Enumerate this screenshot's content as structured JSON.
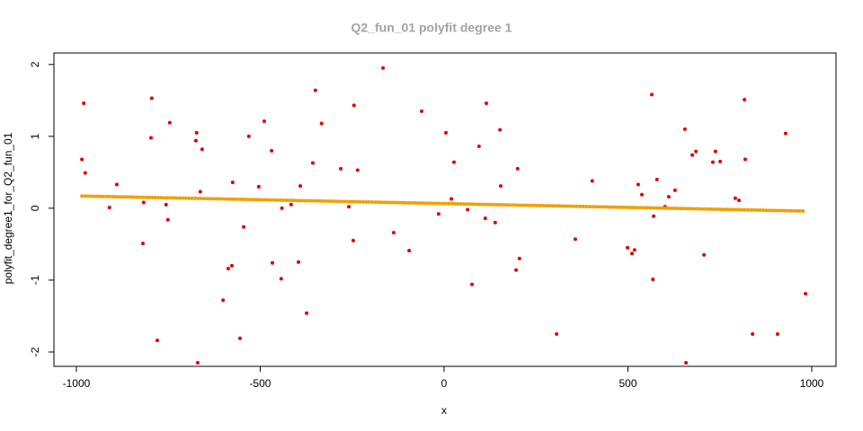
{
  "chart_data": {
    "type": "scatter",
    "title": "Q2_fun_01 polyfit degree 1",
    "x_label": "x",
    "y_label": "polyfit_degree1_for_Q2_fun_01",
    "xlim": [
      -1061,
      1066
    ],
    "ylim": [
      -2.2,
      2.16
    ],
    "xticks": [
      -1000,
      -500,
      0,
      500,
      1000
    ],
    "yticks": [
      -2,
      -1,
      0,
      1,
      2
    ],
    "series": [
      {
        "color": "#e00000",
        "x": [
          -985,
          -980,
          -976,
          -910,
          -890,
          -819,
          -817,
          -797,
          -795,
          -780,
          -756,
          -751,
          -746,
          -675,
          -673,
          -670,
          -663,
          -658,
          -601,
          -587,
          -577,
          -575,
          -555,
          -545,
          -531,
          -504,
          -489,
          -469,
          -467,
          -443,
          -441,
          -416,
          -396,
          -391,
          -374,
          -357,
          -350,
          -333,
          -281,
          -259,
          -247,
          -245,
          -235,
          -166,
          -137,
          -95,
          -61,
          -15,
          5,
          20,
          27,
          64,
          76,
          95,
          112,
          115,
          139,
          152,
          154,
          196,
          200,
          205,
          306,
          357,
          403,
          499,
          511,
          518,
          528,
          538,
          565,
          570,
          568,
          579,
          601,
          611,
          628,
          655,
          658,
          675,
          685,
          707,
          731,
          738,
          751,
          792,
          802,
          817,
          819,
          839,
          907,
          929,
          983
        ],
        "values": [
          0.68,
          1.46,
          0.49,
          0.01,
          0.33,
          -0.49,
          0.08,
          0.98,
          1.53,
          -1.84,
          0.05,
          -0.16,
          1.19,
          0.94,
          1.05,
          -2.15,
          0.23,
          0.82,
          -1.28,
          -0.84,
          -0.8,
          0.36,
          -1.81,
          -0.26,
          1.0,
          0.3,
          1.21,
          0.8,
          -0.76,
          -0.98,
          0.0,
          0.05,
          -0.75,
          0.31,
          -1.46,
          0.63,
          1.64,
          1.18,
          0.55,
          0.02,
          -0.45,
          1.43,
          0.53,
          1.95,
          -0.34,
          -0.59,
          1.35,
          -0.08,
          1.05,
          0.13,
          0.64,
          -0.02,
          -1.06,
          0.86,
          -0.14,
          1.46,
          -0.2,
          1.09,
          0.31,
          -0.86,
          0.55,
          -0.7,
          -1.75,
          -0.43,
          0.38,
          -0.55,
          -0.63,
          -0.58,
          0.33,
          0.19,
          1.58,
          -0.11,
          -0.99,
          0.4,
          0.02,
          0.16,
          0.25,
          1.1,
          -2.15,
          0.74,
          0.79,
          -0.65,
          0.64,
          0.79,
          0.65,
          0.14,
          0.11,
          1.51,
          0.68,
          -1.75,
          -1.75,
          1.04,
          -1.19
        ]
      },
      {
        "color": "#f0a000",
        "style": "fit",
        "x": [
          -985,
          983
        ],
        "values": [
          0.17,
          -0.04
        ]
      }
    ]
  }
}
